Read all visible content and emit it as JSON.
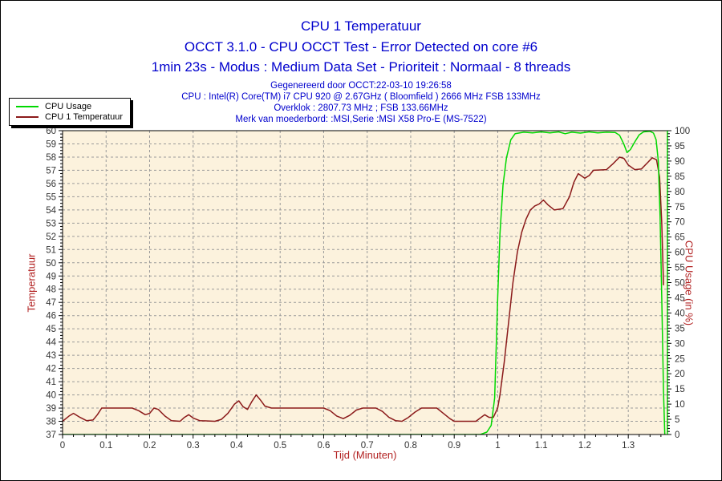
{
  "header": {
    "title": "CPU 1 Temperatuur",
    "subtitle1": "OCCT 3.1.0 - CPU OCCT Test - Error Detected on core #6",
    "subtitle2": "1min 23s - Modus : Medium Data Set - Prioriteit : Normaal - 8 threads",
    "info1": "Gegenereerd door OCCT:22-03-10 19:26:58",
    "info2": "CPU : Intel(R) Core(TM) i7 CPU 920 @ 2.67GHz ( Bloomfield ) 2666 MHz FSB 133MHz",
    "info3": "Overklok : 2807.73 MHz ; FSB 133.66MHz",
    "info4": "Merk van moederbord: :MSI,Serie :MSI X58 Pro-E (MS-7522)"
  },
  "legend": {
    "items": [
      {
        "label": "CPU Usage",
        "color": "#00d800"
      },
      {
        "label": "CPU 1 Temperatuur",
        "color": "#8b1a1a"
      }
    ]
  },
  "colors": {
    "title_blue": "#0000cd",
    "axis_title_red": "#b22222",
    "plot_bg": "#fcf2dd",
    "grid": "#9a9a9a",
    "axis_line": "#000000",
    "right_axis_line": "#00d800",
    "tick_label": "#333333"
  },
  "chart_data": {
    "type": "line",
    "title": "CPU 1 Temperatuur",
    "xlabel": "Tijd (Minuten)",
    "ylabel_left": "Temperatuur",
    "ylabel_right": "CPU Usage (in %)",
    "x_range": [
      0,
      1.39
    ],
    "x_major": 0.1,
    "x_minor": 0.025,
    "y_left_range": [
      37,
      60
    ],
    "y_left_major": 1,
    "y_left_minor": 0.25,
    "y_right_range": [
      0,
      100
    ],
    "y_right_major": 5,
    "y_right_minor": 1,
    "grid": true,
    "legend_position": "top-left",
    "series": [
      {
        "name": "CPU 1 Temperatuur",
        "axis": "left",
        "color": "#8b1a1a",
        "points": [
          [
            0,
            38.0
          ],
          [
            0.015,
            38.4
          ],
          [
            0.025,
            38.6
          ],
          [
            0.04,
            38.3
          ],
          [
            0.055,
            38.05
          ],
          [
            0.07,
            38.1
          ],
          [
            0.08,
            38.5
          ],
          [
            0.09,
            39.0
          ],
          [
            0.16,
            39.0
          ],
          [
            0.175,
            38.8
          ],
          [
            0.19,
            38.5
          ],
          [
            0.2,
            38.6
          ],
          [
            0.21,
            39.0
          ],
          [
            0.22,
            38.9
          ],
          [
            0.235,
            38.4
          ],
          [
            0.25,
            38.05
          ],
          [
            0.27,
            38.0
          ],
          [
            0.28,
            38.3
          ],
          [
            0.29,
            38.5
          ],
          [
            0.3,
            38.25
          ],
          [
            0.315,
            38.05
          ],
          [
            0.35,
            38.0
          ],
          [
            0.365,
            38.15
          ],
          [
            0.38,
            38.6
          ],
          [
            0.395,
            39.3
          ],
          [
            0.405,
            39.55
          ],
          [
            0.415,
            39.1
          ],
          [
            0.425,
            38.9
          ],
          [
            0.435,
            39.5
          ],
          [
            0.445,
            40.0
          ],
          [
            0.455,
            39.6
          ],
          [
            0.465,
            39.15
          ],
          [
            0.48,
            39.0
          ],
          [
            0.6,
            39.0
          ],
          [
            0.615,
            38.8
          ],
          [
            0.63,
            38.4
          ],
          [
            0.645,
            38.2
          ],
          [
            0.66,
            38.45
          ],
          [
            0.675,
            38.85
          ],
          [
            0.69,
            39.0
          ],
          [
            0.72,
            39.0
          ],
          [
            0.735,
            38.75
          ],
          [
            0.75,
            38.3
          ],
          [
            0.765,
            38.05
          ],
          [
            0.78,
            38.0
          ],
          [
            0.795,
            38.3
          ],
          [
            0.81,
            38.7
          ],
          [
            0.825,
            39.0
          ],
          [
            0.86,
            39.0
          ],
          [
            0.875,
            38.6
          ],
          [
            0.89,
            38.2
          ],
          [
            0.9,
            38.0
          ],
          [
            0.95,
            38.0
          ],
          [
            0.96,
            38.25
          ],
          [
            0.97,
            38.5
          ],
          [
            0.98,
            38.3
          ],
          [
            0.99,
            38.3
          ],
          [
            1.0,
            39.0
          ],
          [
            1.005,
            40.0
          ],
          [
            1.015,
            42.5
          ],
          [
            1.025,
            45.5
          ],
          [
            1.035,
            48.5
          ],
          [
            1.045,
            50.8
          ],
          [
            1.055,
            52.3
          ],
          [
            1.065,
            53.3
          ],
          [
            1.075,
            54.0
          ],
          [
            1.085,
            54.3
          ],
          [
            1.095,
            54.45
          ],
          [
            1.105,
            54.75
          ],
          [
            1.115,
            54.4
          ],
          [
            1.13,
            54.0
          ],
          [
            1.15,
            54.1
          ],
          [
            1.165,
            55.0
          ],
          [
            1.175,
            56.1
          ],
          [
            1.185,
            56.75
          ],
          [
            1.2,
            56.4
          ],
          [
            1.21,
            56.6
          ],
          [
            1.22,
            57.0
          ],
          [
            1.25,
            57.05
          ],
          [
            1.265,
            57.5
          ],
          [
            1.28,
            58.0
          ],
          [
            1.29,
            57.9
          ],
          [
            1.3,
            57.4
          ],
          [
            1.315,
            57.05
          ],
          [
            1.33,
            57.1
          ],
          [
            1.345,
            57.6
          ],
          [
            1.355,
            57.95
          ],
          [
            1.365,
            57.8
          ],
          [
            1.372,
            56.5
          ],
          [
            1.377,
            53.0
          ],
          [
            1.381,
            48.3
          ]
        ]
      },
      {
        "name": "CPU Usage",
        "axis": "right",
        "color": "#00d800",
        "points": [
          [
            0,
            0
          ],
          [
            0.96,
            0
          ],
          [
            0.975,
            0.8
          ],
          [
            0.985,
            3
          ],
          [
            0.993,
            12
          ],
          [
            1.0,
            45
          ],
          [
            1.005,
            66
          ],
          [
            1.012,
            82
          ],
          [
            1.02,
            91
          ],
          [
            1.03,
            97
          ],
          [
            1.04,
            99
          ],
          [
            1.06,
            99.5
          ],
          [
            1.08,
            99.3
          ],
          [
            1.1,
            99.6
          ],
          [
            1.12,
            99.3
          ],
          [
            1.14,
            99.6
          ],
          [
            1.155,
            99.0
          ],
          [
            1.17,
            99.5
          ],
          [
            1.19,
            99.2
          ],
          [
            1.21,
            99.6
          ],
          [
            1.23,
            99.3
          ],
          [
            1.25,
            99.5
          ],
          [
            1.27,
            99.4
          ],
          [
            1.28,
            98.5
          ],
          [
            1.29,
            95.5
          ],
          [
            1.297,
            92.8
          ],
          [
            1.305,
            93.8
          ],
          [
            1.315,
            96.3
          ],
          [
            1.325,
            98.6
          ],
          [
            1.335,
            99.6
          ],
          [
            1.35,
            99.8
          ],
          [
            1.358,
            99.2
          ],
          [
            1.364,
            97
          ],
          [
            1.369,
            90
          ],
          [
            1.373,
            72
          ],
          [
            1.377,
            45
          ],
          [
            1.381,
            14
          ],
          [
            1.384,
            0
          ]
        ]
      }
    ]
  }
}
